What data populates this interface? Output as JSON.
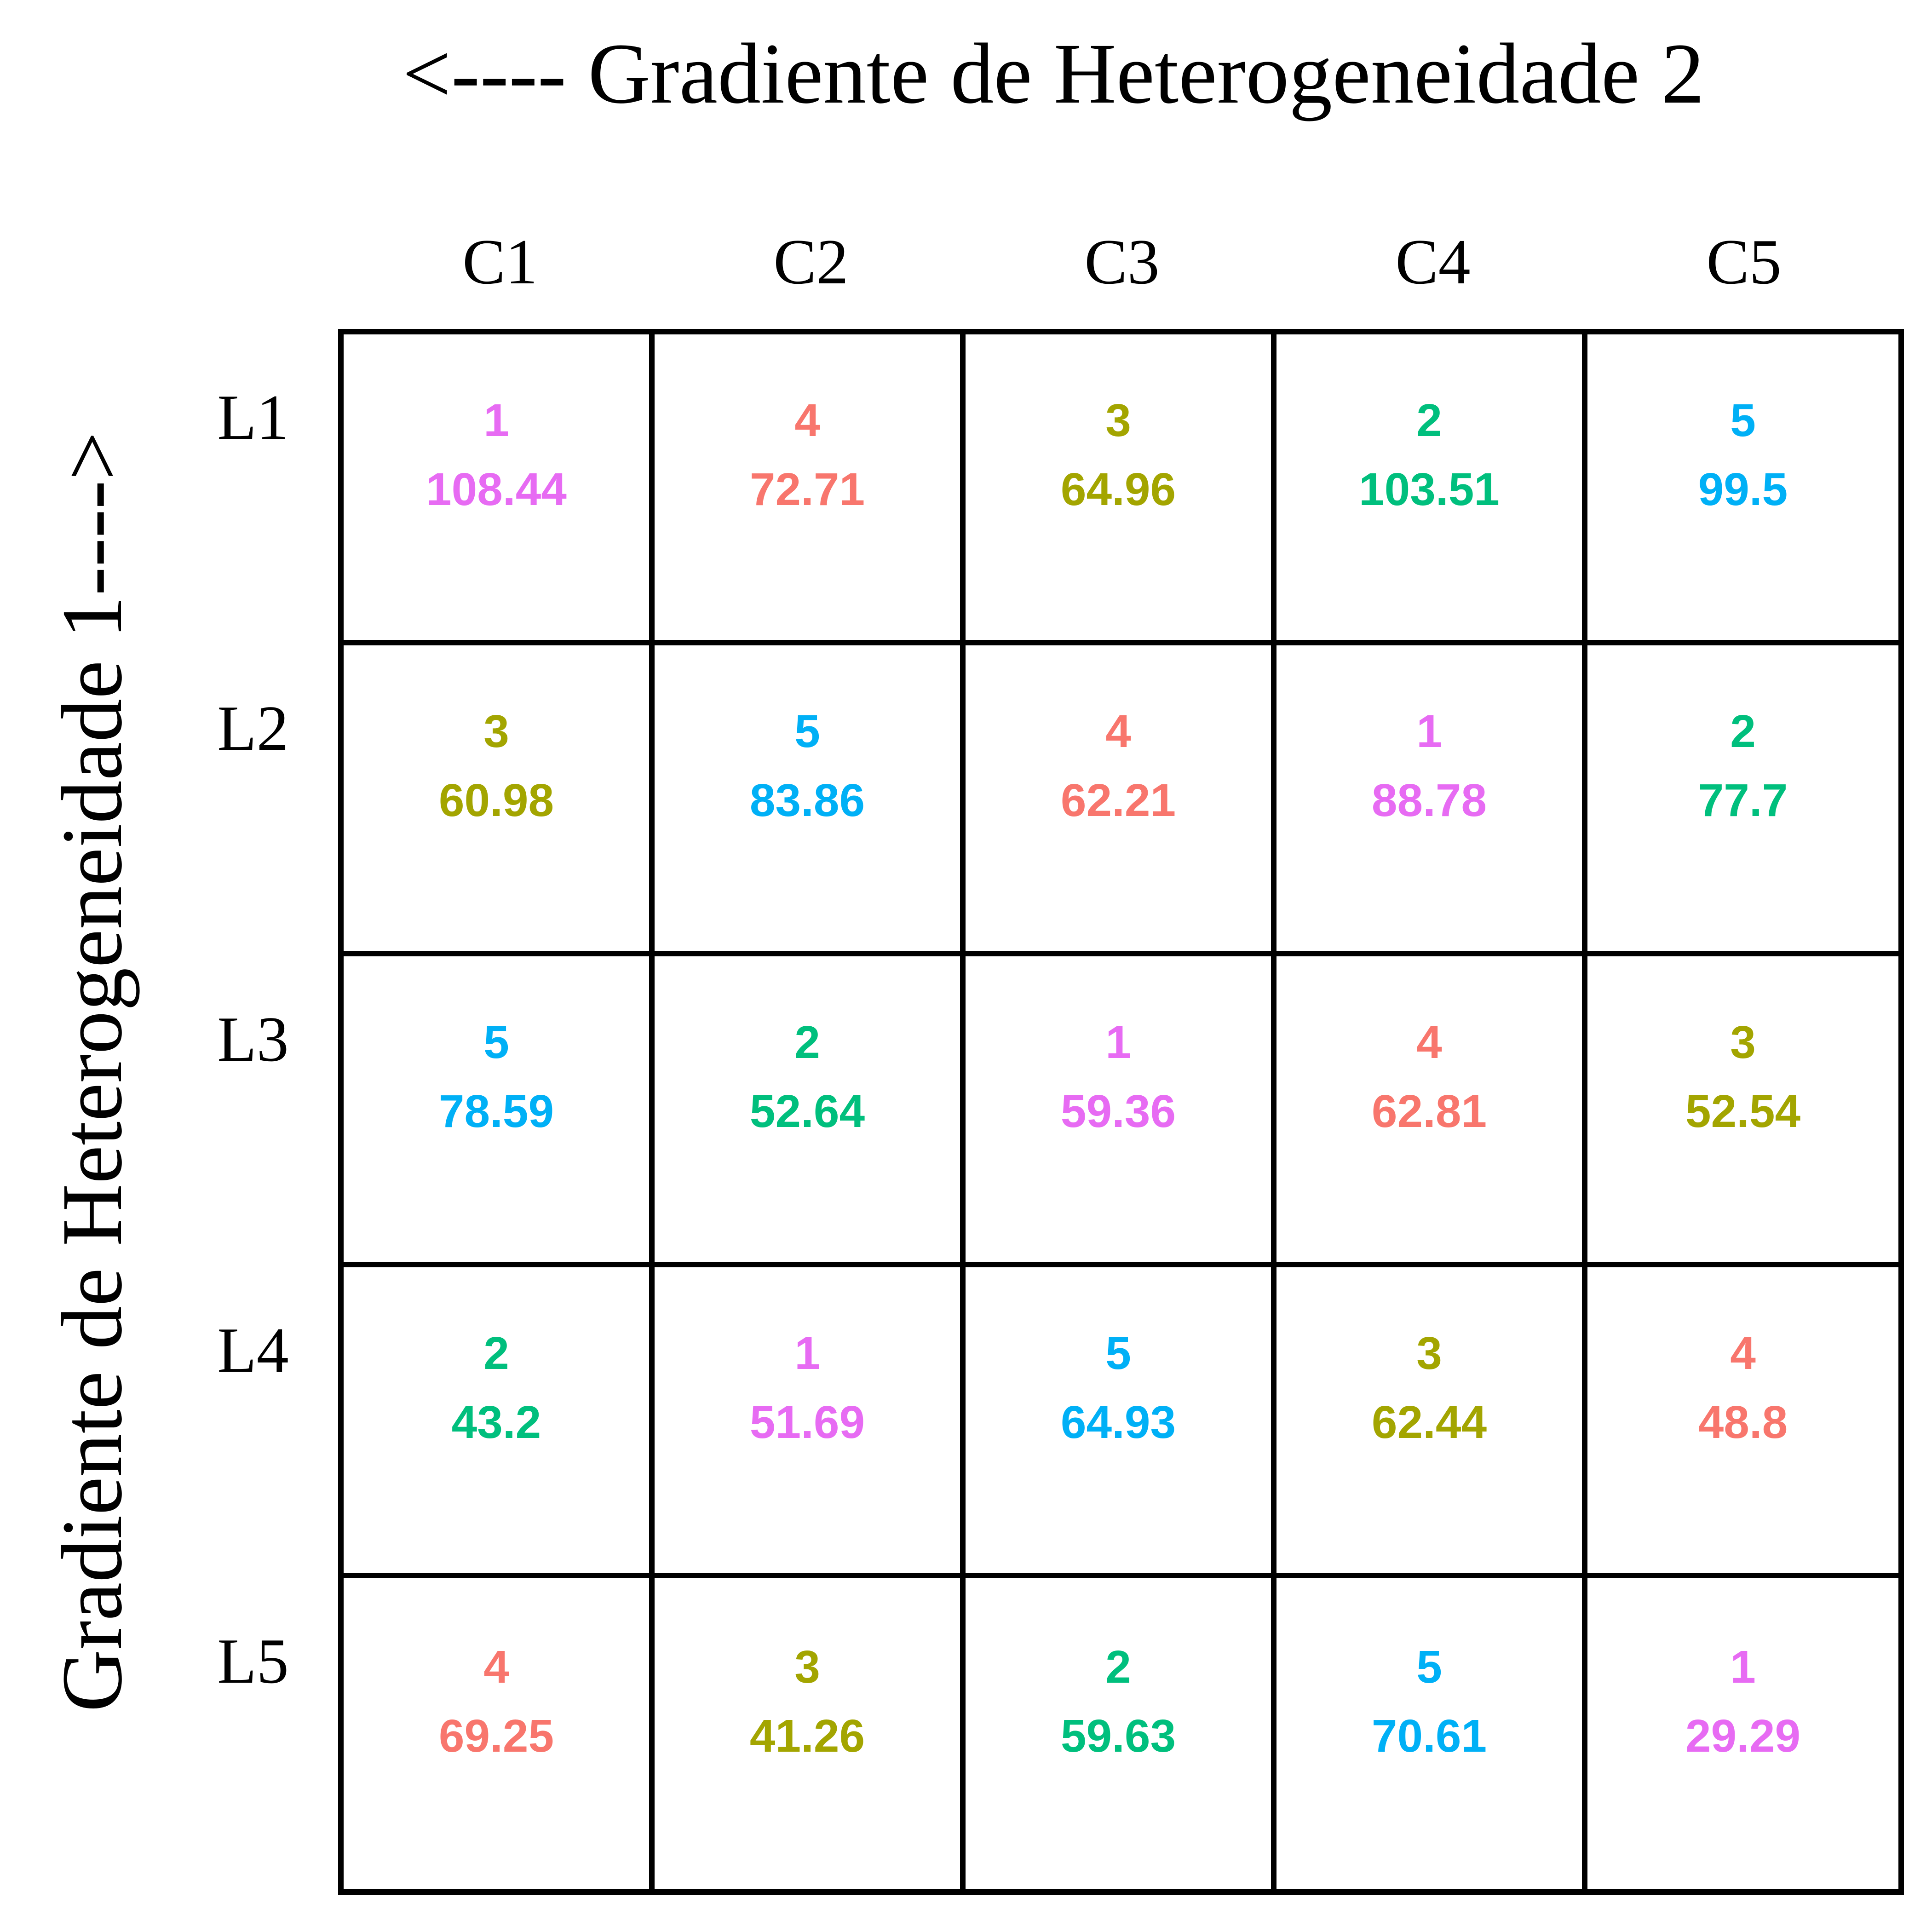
{
  "title_top": "<---- Gradiente de Heterogeneidade 2",
  "title_side": "Gradiente de Heterogeneidade 1---->",
  "columns": [
    "C1",
    "C2",
    "C3",
    "C4",
    "C5"
  ],
  "rows": [
    "L1",
    "L2",
    "L3",
    "L4",
    "L5"
  ],
  "treatment_colors": {
    "1": "#E76BF3",
    "2": "#00BF7D",
    "3": "#A3A500",
    "4": "#F8766D",
    "5": "#00B0F6"
  },
  "cells": [
    [
      {
        "treatment": "1",
        "value": "108.44"
      },
      {
        "treatment": "4",
        "value": "72.71"
      },
      {
        "treatment": "3",
        "value": "64.96"
      },
      {
        "treatment": "2",
        "value": "103.51"
      },
      {
        "treatment": "5",
        "value": "99.5"
      }
    ],
    [
      {
        "treatment": "3",
        "value": "60.98"
      },
      {
        "treatment": "5",
        "value": "83.86"
      },
      {
        "treatment": "4",
        "value": "62.21"
      },
      {
        "treatment": "1",
        "value": "88.78"
      },
      {
        "treatment": "2",
        "value": "77.7"
      }
    ],
    [
      {
        "treatment": "5",
        "value": "78.59"
      },
      {
        "treatment": "2",
        "value": "52.64"
      },
      {
        "treatment": "1",
        "value": "59.36"
      },
      {
        "treatment": "4",
        "value": "62.81"
      },
      {
        "treatment": "3",
        "value": "52.54"
      }
    ],
    [
      {
        "treatment": "2",
        "value": "43.2"
      },
      {
        "treatment": "1",
        "value": "51.69"
      },
      {
        "treatment": "5",
        "value": "64.93"
      },
      {
        "treatment": "3",
        "value": "62.44"
      },
      {
        "treatment": "4",
        "value": "48.8"
      }
    ],
    [
      {
        "treatment": "4",
        "value": "69.25"
      },
      {
        "treatment": "3",
        "value": "41.26"
      },
      {
        "treatment": "2",
        "value": "59.63"
      },
      {
        "treatment": "5",
        "value": "70.61"
      },
      {
        "treatment": "1",
        "value": "29.29"
      }
    ]
  ]
}
